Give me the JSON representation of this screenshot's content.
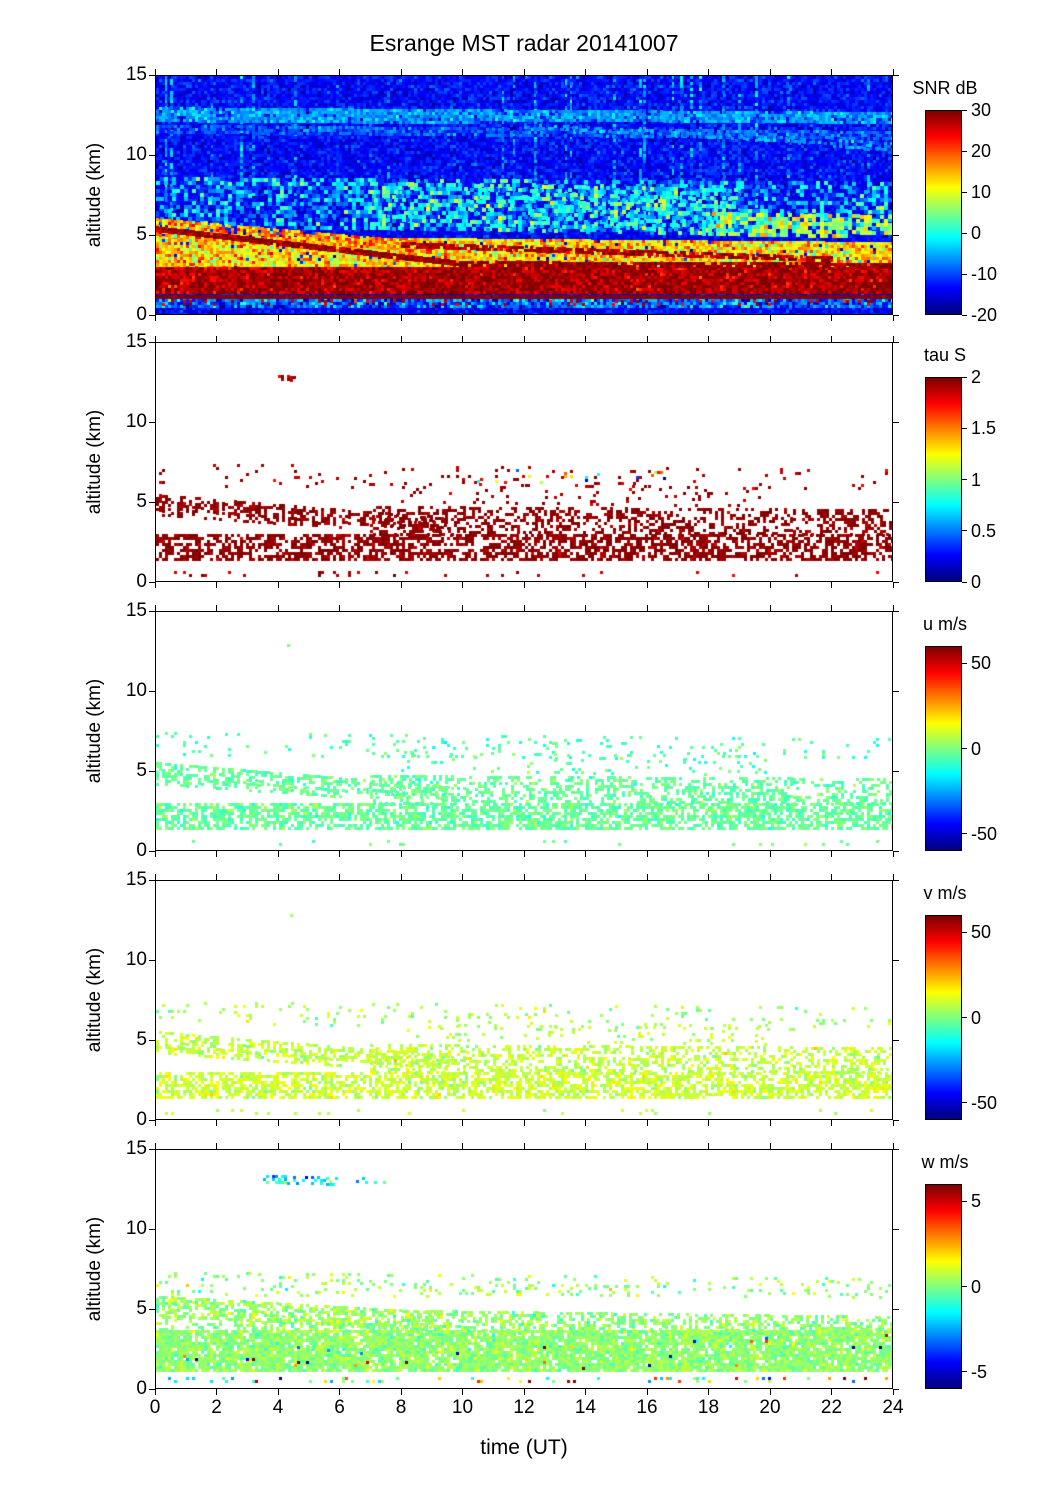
{
  "title": "Esrange MST radar 20141007",
  "chart_data": {
    "type": "heatmap",
    "title": "Esrange MST radar 20141007",
    "xlabel": "time (UT)",
    "ylabel": "altitude (km)",
    "x_range": [
      0,
      24
    ],
    "y_range": [
      0,
      15
    ],
    "x_ticks": [
      0,
      2,
      4,
      6,
      8,
      10,
      12,
      14,
      16,
      18,
      20,
      22,
      24
    ],
    "y_ticks": [
      0,
      5,
      10,
      15
    ],
    "colormap": "jet",
    "panels": [
      {
        "id": "snr",
        "colorbar_label": "SNR dB",
        "range": [
          -20,
          30
        ],
        "colorbar_ticks": [
          30,
          20,
          10,
          0,
          -10,
          -20
        ],
        "seed": 7,
        "layers": [
          {
            "t": [
              0,
              24
            ],
            "top": [
              15,
              15
            ],
            "bot": [
              0,
              0
            ],
            "mean": -14,
            "std": 2,
            "density": 1,
            "cell": 3
          },
          {
            "t": [
              0,
              24
            ],
            "top": [
              15,
              15
            ],
            "bot": [
              8.5,
              8.5
            ],
            "mean": -13.5,
            "std": 2.2,
            "density": 1,
            "cell": 3
          },
          {
            "t": [
              0,
              24
            ],
            "top": [
              15,
              15
            ],
            "bot": [
              5.5,
              5.5
            ],
            "mean": -6,
            "std": 3,
            "density": 0.5,
            "cell": 3,
            "vstreaks": 26
          },
          {
            "t": [
              0,
              24
            ],
            "top": [
              13.0,
              12.7
            ],
            "bot": [
              12.2,
              12.0
            ],
            "mean": -6,
            "std": 2.5,
            "density": 0.9,
            "cell": 3
          },
          {
            "t": [
              0,
              24
            ],
            "top": [
              11.9,
              11.5
            ],
            "bot": [
              11.4,
              11.0
            ],
            "mean": -9,
            "std": 2.5,
            "density": 0.8,
            "cell": 3
          },
          {
            "t": [
              12,
              24
            ],
            "top": [
              12.0,
              10.8
            ],
            "bot": [
              11.7,
              10.4
            ],
            "mean": -6,
            "std": 2,
            "density": 0.5,
            "cell": 3
          },
          {
            "t": [
              0,
              24
            ],
            "top": [
              8.6,
              8.3
            ],
            "bot": [
              5.5,
              5.2
            ],
            "mean": -5,
            "std": 5,
            "density": 0.55,
            "cell": 4
          },
          {
            "t": [
              7,
              19
            ],
            "top": [
              8.3,
              7.9
            ],
            "bot": [
              5.3,
              5.1
            ],
            "mean": -1,
            "std": 5,
            "density": 0.5,
            "cell": 4
          },
          {
            "t": [
              18,
              24
            ],
            "top": [
              6.4,
              6.2
            ],
            "bot": [
              4.9,
              5.0
            ],
            "mean": 6,
            "std": 6,
            "density": 0.7,
            "cell": 4
          },
          {
            "t": [
              0,
              24
            ],
            "top": [
              4.9,
              4.5
            ],
            "bot": [
              2.95,
              2.95
            ],
            "mean": 13,
            "std": 5,
            "density": 0.97,
            "cell": 3
          },
          {
            "t": [
              0,
              9
            ],
            "top": [
              6.0,
              4.5
            ],
            "bot": [
              4.9,
              3.6
            ],
            "mean": 16,
            "std": 5,
            "density": 0.85,
            "cell": 3
          },
          {
            "t": [
              0,
              24
            ],
            "top": [
              2.95,
              2.95
            ],
            "bot": [
              1.35,
              1.35
            ],
            "mean": 28,
            "std": 3,
            "density": 1,
            "cell": 3
          },
          {
            "t": [
              0,
              10
            ],
            "top": [
              5.5,
              3.3
            ],
            "bot": [
              5.15,
              3.0
            ],
            "mean": 29,
            "std": 2,
            "density": 0.95,
            "cell": 3
          },
          {
            "t": [
              10,
              24
            ],
            "top": [
              3.3,
              3.2
            ],
            "bot": [
              3.0,
              2.85
            ],
            "mean": 29,
            "std": 2,
            "density": 0.9,
            "cell": 3
          },
          {
            "t": [
              8,
              22
            ],
            "top": [
              4.5,
              3.6
            ],
            "bot": [
              4.2,
              3.3
            ],
            "mean": 28,
            "std": 2.5,
            "density": 0.8,
            "cell": 3
          },
          {
            "t": [
              0,
              24
            ],
            "top": [
              1.18,
              1.18
            ],
            "bot": [
              0.92,
              0.92
            ],
            "mean": 30,
            "std": 1,
            "density": 1,
            "cell": 3
          },
          {
            "t": [
              0,
              24
            ],
            "top": [
              0.9,
              0.9
            ],
            "bot": [
              0.45,
              0.45
            ],
            "mean": -9,
            "std": 5,
            "density": 1,
            "cell": 3
          },
          {
            "t": [
              0,
              24
            ],
            "top": [
              0.85,
              0.85
            ],
            "bot": [
              0.5,
              0.5
            ],
            "mean": 27,
            "std": 3,
            "density": 0.12,
            "cell": 3
          }
        ]
      },
      {
        "id": "tau",
        "colorbar_label": "tau S",
        "range": [
          0,
          2
        ],
        "colorbar_ticks": [
          2,
          1.5,
          1,
          0.5,
          0
        ],
        "seed": 13,
        "layers": [
          {
            "t": [
              0,
              9.5
            ],
            "top": [
              5.45,
              3.95
            ],
            "bot": [
              4.5,
              3.2
            ],
            "mean": 1.97,
            "std": 0.06,
            "density": 0.5,
            "cell": 3
          },
          {
            "t": [
              0,
              6
            ],
            "top": [
              4.6,
              3.8
            ],
            "bot": [
              4.2,
              3.3
            ],
            "mean": 1.97,
            "std": 0.05,
            "density": 0.35,
            "cell": 3
          },
          {
            "t": [
              0,
              24
            ],
            "top": [
              2.95,
              2.95
            ],
            "bot": [
              1.4,
              1.4
            ],
            "mean": 1.97,
            "std": 0.05,
            "density": 0.6,
            "cell": 3
          },
          {
            "t": [
              7,
              24
            ],
            "top": [
              4.7,
              4.5
            ],
            "bot": [
              2.95,
              2.95
            ],
            "mean": 1.97,
            "std": 0.05,
            "density": 0.42,
            "cell": 3
          },
          {
            "t": [
              0,
              24
            ],
            "top": [
              7.4,
              7.0
            ],
            "bot": [
              6.0,
              5.8
            ],
            "mean": 1.95,
            "std": 0.08,
            "density": 0.06,
            "cell": 3
          },
          {
            "t": [
              8,
              20
            ],
            "top": [
              6.2,
              5.9
            ],
            "bot": [
              4.9,
              4.7
            ],
            "mean": 1.95,
            "std": 0.08,
            "density": 0.08,
            "cell": 3
          },
          {
            "t": [
              10,
              17
            ],
            "top": [
              7.1,
              6.9
            ],
            "bot": [
              6.3,
              6.2
            ],
            "mean": 1.0,
            "std": 0.6,
            "density": 0.05,
            "cell": 3
          },
          {
            "t": [
              4.0,
              4.5
            ],
            "top": [
              12.95,
              12.9
            ],
            "bot": [
              12.7,
              12.7
            ],
            "mean": 1.9,
            "std": 0.1,
            "density": 0.6,
            "cell": 3
          },
          {
            "t": [
              0,
              24
            ],
            "top": [
              0.6,
              0.6
            ],
            "bot": [
              0.4,
              0.4
            ],
            "mean": 1.9,
            "std": 0.1,
            "density": 0.06,
            "cell": 3
          }
        ]
      },
      {
        "id": "u",
        "colorbar_label": "u m/s",
        "range": [
          -60,
          60
        ],
        "colorbar_ticks": [
          50,
          0,
          -50
        ],
        "seed": 21,
        "layers": [
          {
            "t": [
              0,
              9.5
            ],
            "top": [
              5.5,
              4.0
            ],
            "bot": [
              4.5,
              3.2
            ],
            "mean": -3,
            "std": 3.5,
            "density": 0.55,
            "cell": 3
          },
          {
            "t": [
              0,
              6
            ],
            "top": [
              4.6,
              3.8
            ],
            "bot": [
              4.2,
              3.3
            ],
            "mean": -3,
            "std": 3,
            "density": 0.4,
            "cell": 3
          },
          {
            "t": [
              0,
              24
            ],
            "top": [
              2.95,
              2.95
            ],
            "bot": [
              1.4,
              1.4
            ],
            "mean": -3,
            "std": 3.5,
            "density": 0.65,
            "cell": 3
          },
          {
            "t": [
              7,
              24
            ],
            "top": [
              4.7,
              4.5
            ],
            "bot": [
              2.95,
              2.95
            ],
            "mean": -3,
            "std": 3.5,
            "density": 0.45,
            "cell": 3
          },
          {
            "t": [
              0,
              24
            ],
            "top": [
              7.4,
              7.0
            ],
            "bot": [
              5.9,
              5.7
            ],
            "mean": -6,
            "std": 4,
            "density": 0.08,
            "cell": 3
          },
          {
            "t": [
              8,
              20
            ],
            "top": [
              6.2,
              5.9
            ],
            "bot": [
              4.9,
              4.7
            ],
            "mean": -4,
            "std": 4,
            "density": 0.09,
            "cell": 3
          },
          {
            "t": [
              4.2,
              4.5
            ],
            "top": [
              12.95,
              12.9
            ],
            "bot": [
              12.75,
              12.75
            ],
            "mean": -3,
            "std": 2,
            "density": 0.5,
            "cell": 3
          },
          {
            "t": [
              0,
              24
            ],
            "top": [
              0.6,
              0.6
            ],
            "bot": [
              0.4,
              0.4
            ],
            "mean": -3,
            "std": 3,
            "density": 0.05,
            "cell": 3
          }
        ]
      },
      {
        "id": "v",
        "colorbar_label": "v m/s",
        "range": [
          -60,
          60
        ],
        "colorbar_ticks": [
          50,
          0,
          -50
        ],
        "seed": 33,
        "layers": [
          {
            "t": [
              0,
              9.5
            ],
            "top": [
              5.5,
              4.0
            ],
            "bot": [
              4.5,
              3.2
            ],
            "mean": 8,
            "std": 4,
            "density": 0.55,
            "cell": 3
          },
          {
            "t": [
              0,
              6
            ],
            "top": [
              4.6,
              3.8
            ],
            "bot": [
              4.2,
              3.3
            ],
            "mean": 8,
            "std": 4,
            "density": 0.4,
            "cell": 3
          },
          {
            "t": [
              0,
              24
            ],
            "top": [
              2.95,
              2.95
            ],
            "bot": [
              1.4,
              1.4
            ],
            "mean": 9,
            "std": 4,
            "density": 0.65,
            "cell": 3
          },
          {
            "t": [
              7,
              24
            ],
            "top": [
              4.7,
              4.5
            ],
            "bot": [
              2.95,
              2.95
            ],
            "mean": 8,
            "std": 4,
            "density": 0.45,
            "cell": 3
          },
          {
            "t": [
              0,
              24
            ],
            "top": [
              7.4,
              7.0
            ],
            "bot": [
              5.9,
              5.7
            ],
            "mean": 5,
            "std": 5,
            "density": 0.08,
            "cell": 3
          },
          {
            "t": [
              8,
              20
            ],
            "top": [
              6.2,
              5.9
            ],
            "bot": [
              4.9,
              4.7
            ],
            "mean": 7,
            "std": 4,
            "density": 0.09,
            "cell": 3
          },
          {
            "t": [
              4.2,
              4.5
            ],
            "top": [
              12.95,
              12.9
            ],
            "bot": [
              12.75,
              12.75
            ],
            "mean": 8,
            "std": 3,
            "density": 0.5,
            "cell": 3
          },
          {
            "t": [
              0,
              24
            ],
            "top": [
              0.6,
              0.6
            ],
            "bot": [
              0.4,
              0.4
            ],
            "mean": 8,
            "std": 4,
            "density": 0.04,
            "cell": 3
          }
        ]
      },
      {
        "id": "w",
        "colorbar_label": "w m/s",
        "range": [
          -6,
          6
        ],
        "colorbar_ticks": [
          5,
          0,
          -5
        ],
        "seed": 47,
        "layers": [
          {
            "t": [
              0,
              9
            ],
            "top": [
              5.8,
              4.8
            ],
            "bot": [
              4.5,
              3.5
            ],
            "mean": 0.3,
            "std": 0.5,
            "density": 0.6,
            "cell": 3
          },
          {
            "t": [
              0,
              8
            ],
            "top": [
              4.5,
              4.2
            ],
            "bot": [
              3.5,
              3.4
            ],
            "mean": 0.2,
            "std": 0.5,
            "density": 0.35,
            "cell": 3
          },
          {
            "t": [
              0,
              24
            ],
            "top": [
              3.6,
              3.6
            ],
            "bot": [
              1.05,
              1.05
            ],
            "mean": 0.2,
            "std": 0.4,
            "density": 0.9,
            "cell": 3
          },
          {
            "t": [
              8,
              24
            ],
            "top": [
              4.9,
              4.5
            ],
            "bot": [
              3.5,
              3.4
            ],
            "mean": 0.2,
            "std": 0.5,
            "density": 0.55,
            "cell": 3
          },
          {
            "t": [
              0,
              24
            ],
            "top": [
              7.3,
              6.9
            ],
            "bot": [
              5.9,
              5.7
            ],
            "mean": 0.3,
            "std": 0.7,
            "density": 0.12,
            "cell": 3
          },
          {
            "t": [
              3.5,
              7.5
            ],
            "top": [
              13.4,
              13.2
            ],
            "bot": [
              12.9,
              12.9
            ],
            "mean": -1.5,
            "std": 1.3,
            "density": 0.3,
            "cell": 3
          },
          {
            "t": [
              0,
              24
            ],
            "top": [
              0.65,
              0.65
            ],
            "bot": [
              0.3,
              0.3
            ],
            "mean": 0,
            "std": 3,
            "density": 0.13,
            "cell": 3
          },
          {
            "t": [
              0,
              24
            ],
            "top": [
              3.4,
              3.4
            ],
            "bot": [
              1.2,
              1.2
            ],
            "mean": 0,
            "std": 4,
            "density": 0.012,
            "cell": 3
          }
        ]
      }
    ]
  }
}
